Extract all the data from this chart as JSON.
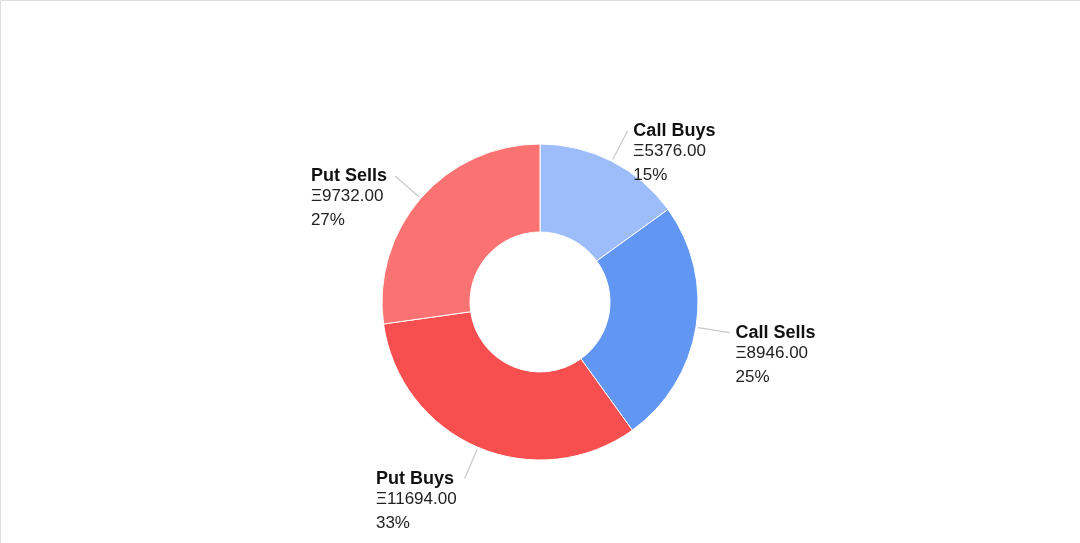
{
  "chart_data": {
    "type": "donut",
    "categories": [
      "Call Buys",
      "Call Sells",
      "Put Buys",
      "Put Sells"
    ],
    "values": [
      5376,
      8946,
      11694,
      9732
    ],
    "colors": [
      "#9cbcfa",
      "#6196f2",
      "#f74f50",
      "#fa7272"
    ],
    "value_labels": [
      "Ξ5376.00\n15%",
      "Ξ8946.00\n25%",
      "Ξ11694.00\n33%",
      "Ξ9732.00\n27%"
    ]
  }
}
